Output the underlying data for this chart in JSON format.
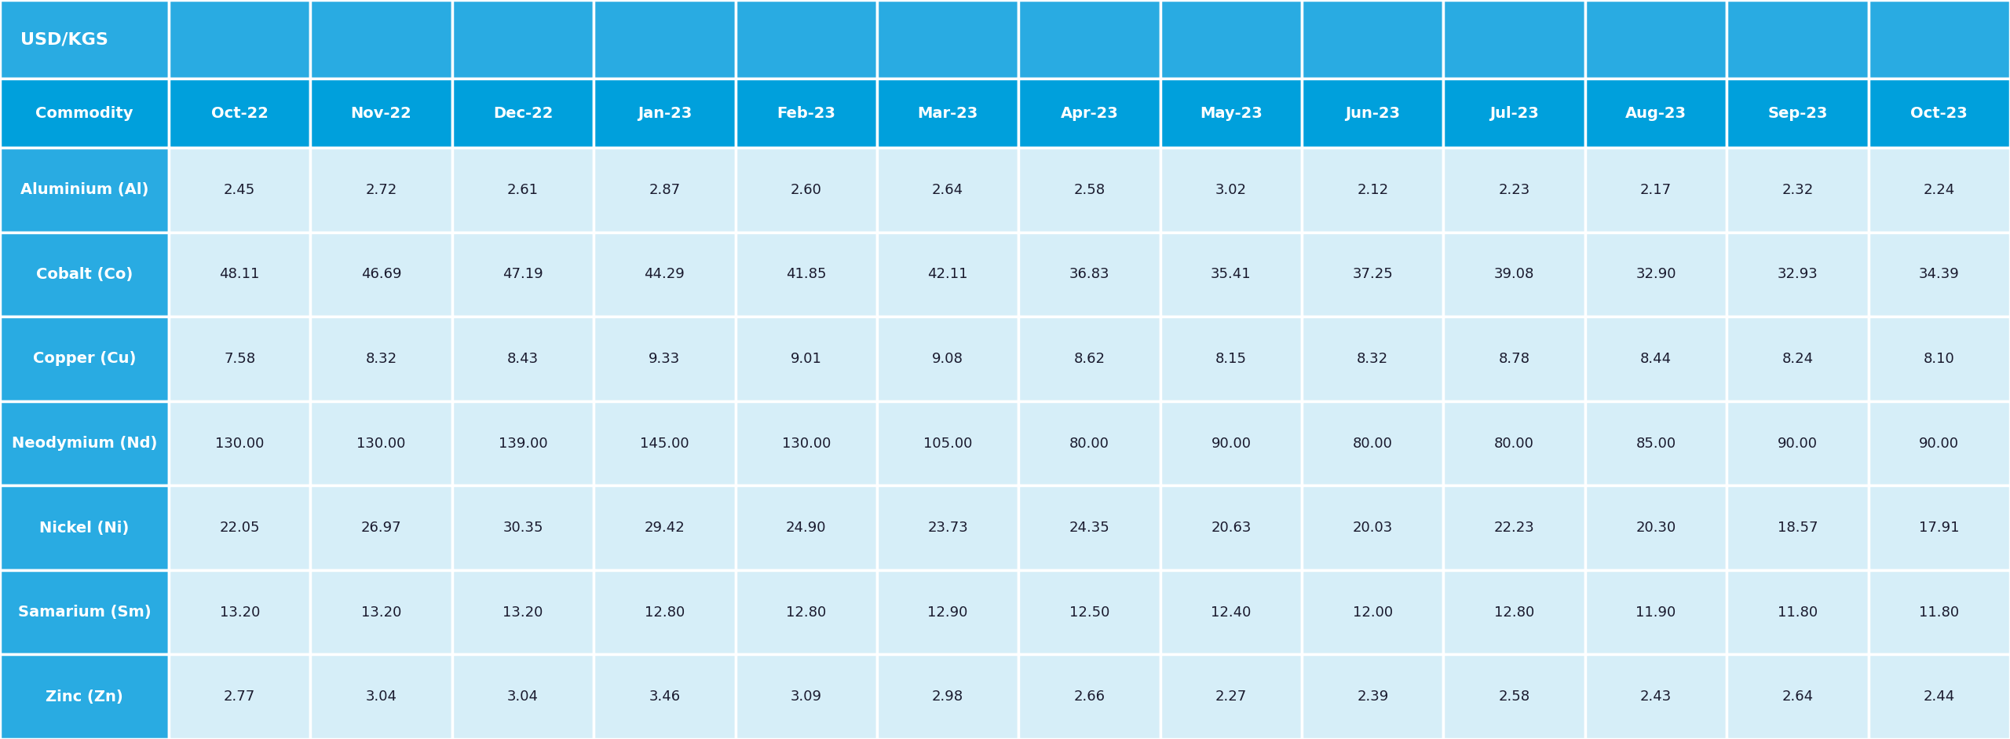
{
  "header_label": "USD/KGS",
  "columns": [
    "Commodity",
    "Oct-22",
    "Nov-22",
    "Dec-22",
    "Jan-23",
    "Feb-23",
    "Mar-23",
    "Apr-23",
    "May-23",
    "Jun-23",
    "Jul-23",
    "Aug-23",
    "Sep-23",
    "Oct-23"
  ],
  "rows": [
    [
      "Aluminium (Al)",
      "2.45",
      "2.72",
      "2.61",
      "2.87",
      "2.60",
      "2.64",
      "2.58",
      "3.02",
      "2.12",
      "2.23",
      "2.17",
      "2.32",
      "2.24"
    ],
    [
      "Cobalt (Co)",
      "48.11",
      "46.69",
      "47.19",
      "44.29",
      "41.85",
      "42.11",
      "36.83",
      "35.41",
      "37.25",
      "39.08",
      "32.90",
      "32.93",
      "34.39"
    ],
    [
      "Copper (Cu)",
      "7.58",
      "8.32",
      "8.43",
      "9.33",
      "9.01",
      "9.08",
      "8.62",
      "8.15",
      "8.32",
      "8.78",
      "8.44",
      "8.24",
      "8.10"
    ],
    [
      "Neodymium (Nd)",
      "130.00",
      "130.00",
      "139.00",
      "145.00",
      "130.00",
      "105.00",
      "80.00",
      "90.00",
      "80.00",
      "80.00",
      "85.00",
      "90.00",
      "90.00"
    ],
    [
      "Nickel (Ni)",
      "22.05",
      "26.97",
      "30.35",
      "29.42",
      "24.90",
      "23.73",
      "24.35",
      "20.63",
      "20.03",
      "22.23",
      "20.30",
      "18.57",
      "17.91"
    ],
    [
      "Samarium (Sm)",
      "13.20",
      "13.20",
      "13.20",
      "12.80",
      "12.80",
      "12.90",
      "12.50",
      "12.40",
      "12.00",
      "12.80",
      "11.90",
      "11.80",
      "11.80"
    ],
    [
      "Zinc (Zn)",
      "2.77",
      "3.04",
      "3.04",
      "3.46",
      "3.09",
      "2.98",
      "2.66",
      "2.27",
      "2.39",
      "2.58",
      "2.43",
      "2.64",
      "2.44"
    ]
  ],
  "color_header_top": "#29ABE2",
  "color_header_row": "#00A0DC",
  "color_commodity_col": "#29ABE2",
  "color_data_cell": "#D6EEF8",
  "color_border": "#FFFFFF",
  "color_header_text": "#FFFFFF",
  "color_data_text": "#1A1A2E",
  "color_commodity_text": "#FFFFFF",
  "background_color": "#FFFFFF",
  "fig_width": 25.6,
  "fig_height": 9.41,
  "dpi": 100
}
